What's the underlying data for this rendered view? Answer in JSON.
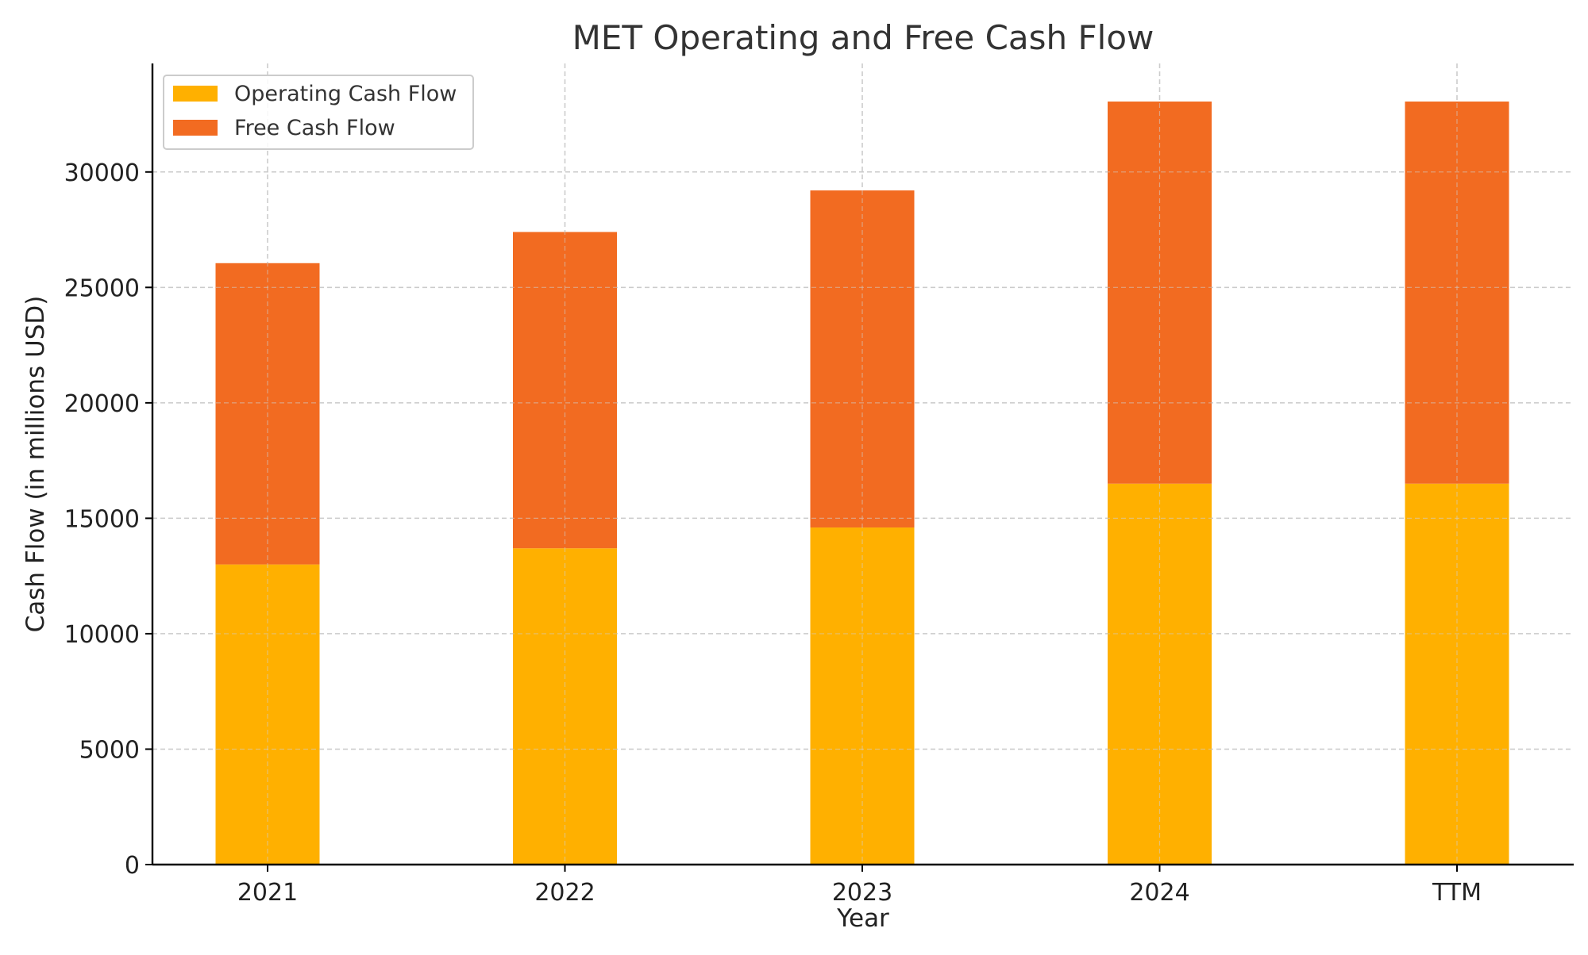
{
  "chart_data": {
    "type": "bar",
    "stacked": true,
    "title": "MET Operating and Free Cash Flow",
    "xlabel": "Year",
    "ylabel": "Cash Flow (in millions USD)",
    "categories": [
      "2021",
      "2022",
      "2023",
      "2024",
      "TTM"
    ],
    "series": [
      {
        "name": "Operating Cash Flow",
        "values": [
          13000,
          13700,
          14600,
          16500,
          16500
        ],
        "color": "#FFB000"
      },
      {
        "name": "Free Cash Flow",
        "values": [
          13050,
          13700,
          14600,
          16550,
          16550
        ],
        "color": "#F26B21"
      }
    ],
    "ylim": [
      0,
      34700
    ],
    "yticks": [
      0,
      5000,
      10000,
      15000,
      20000,
      25000,
      30000
    ],
    "grid": true,
    "legend": "top-left"
  }
}
